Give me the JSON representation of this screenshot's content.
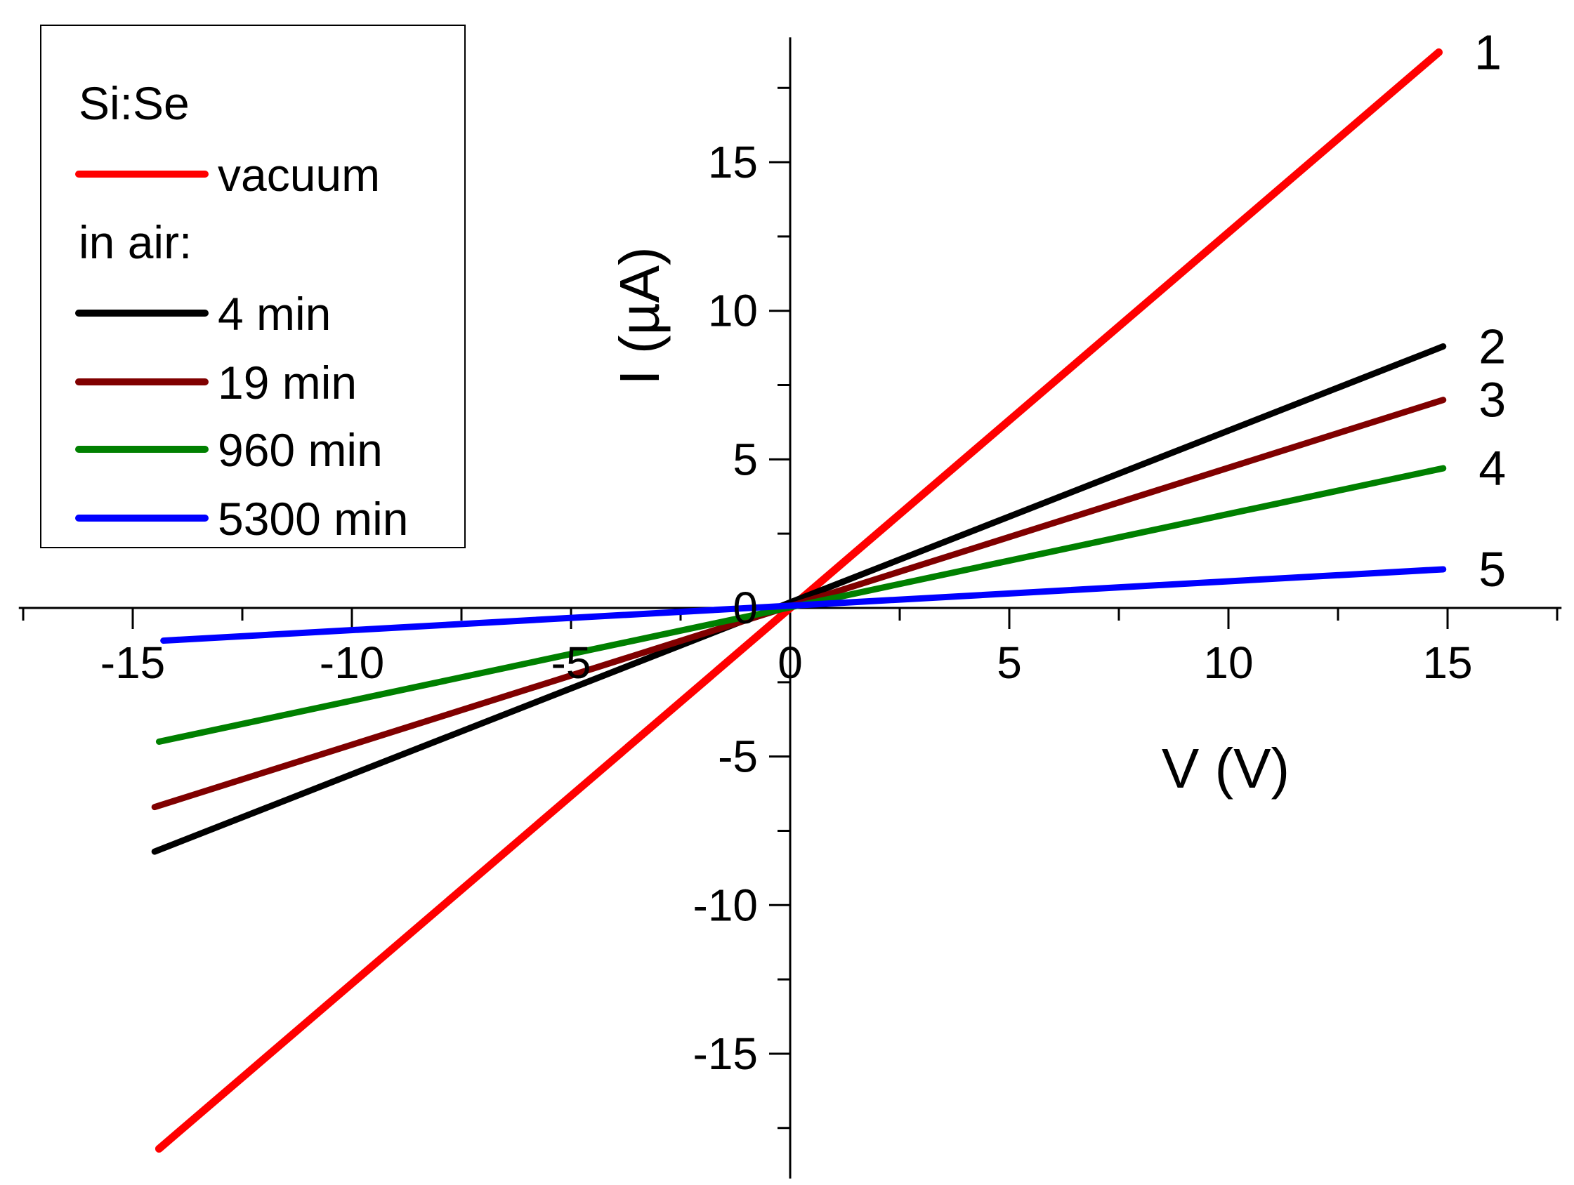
{
  "chart_data": {
    "type": "line",
    "title": "",
    "xlabel": "V (V)",
    "ylabel": "I (µA)",
    "xlim": [
      -17.6,
      17.6
    ],
    "ylim": [
      -19.2,
      19.2
    ],
    "x_ticks": [
      -15,
      -10,
      -5,
      0,
      5,
      10,
      15
    ],
    "x_tick_labels": [
      "-15",
      "-10",
      "-5",
      "0",
      "5",
      "10",
      "15"
    ],
    "y_ticks": [
      -15,
      -10,
      -5,
      0,
      5,
      10,
      15
    ],
    "y_tick_labels": [
      "-15",
      "-10",
      "-5",
      "0",
      "5",
      "10",
      "15"
    ],
    "grid": false,
    "legend_position": "top-left",
    "legend_title": "Si:Se",
    "legend_subtitle": "in air:",
    "series": [
      {
        "name": "vacuum",
        "number_label": "1",
        "color": "#ff0000",
        "x": [
          -14.4,
          14.8
        ],
        "y": [
          -18.2,
          18.7
        ]
      },
      {
        "name": "4 min",
        "number_label": "2",
        "color": "#000000",
        "x": [
          -14.5,
          14.9
        ],
        "y": [
          -8.2,
          8.8
        ]
      },
      {
        "name": "19 min",
        "number_label": "3",
        "color": "#800000",
        "x": [
          -14.5,
          14.9
        ],
        "y": [
          -6.7,
          7.0
        ]
      },
      {
        "name": "960 min",
        "number_label": "4",
        "color": "#008000",
        "x": [
          -14.4,
          14.9
        ],
        "y": [
          -4.5,
          4.7
        ]
      },
      {
        "name": "5300 min",
        "number_label": "5",
        "color": "#0000ff",
        "x": [
          -14.3,
          14.9
        ],
        "y": [
          -1.1,
          1.3
        ]
      }
    ]
  }
}
